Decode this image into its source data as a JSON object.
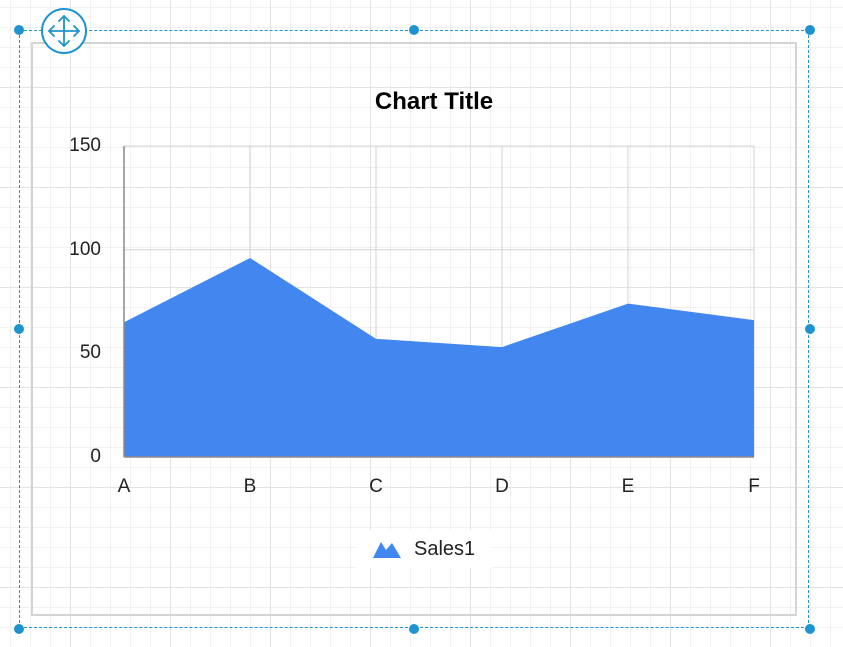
{
  "chart_data": {
    "type": "area",
    "title": "Chart Title",
    "categories": [
      "A",
      "B",
      "C",
      "D",
      "E",
      "F"
    ],
    "series": [
      {
        "name": "Sales1",
        "values": [
          65,
          96,
          57,
          53,
          74,
          66
        ],
        "color": "#4287ef"
      }
    ],
    "yticks": [
      "0",
      "50",
      "100",
      "150"
    ],
    "ylim": [
      0,
      150
    ],
    "xlabel": "",
    "ylabel": "",
    "grid": true,
    "legend_position": "bottom"
  },
  "colors": {
    "selection": "#1f93d0",
    "series": "#4287ef",
    "gridline": "#d9d9d9",
    "axis": "#8c8c8c"
  },
  "icons": {
    "move": "move-arrows-icon",
    "legend": "area-series-icon"
  }
}
